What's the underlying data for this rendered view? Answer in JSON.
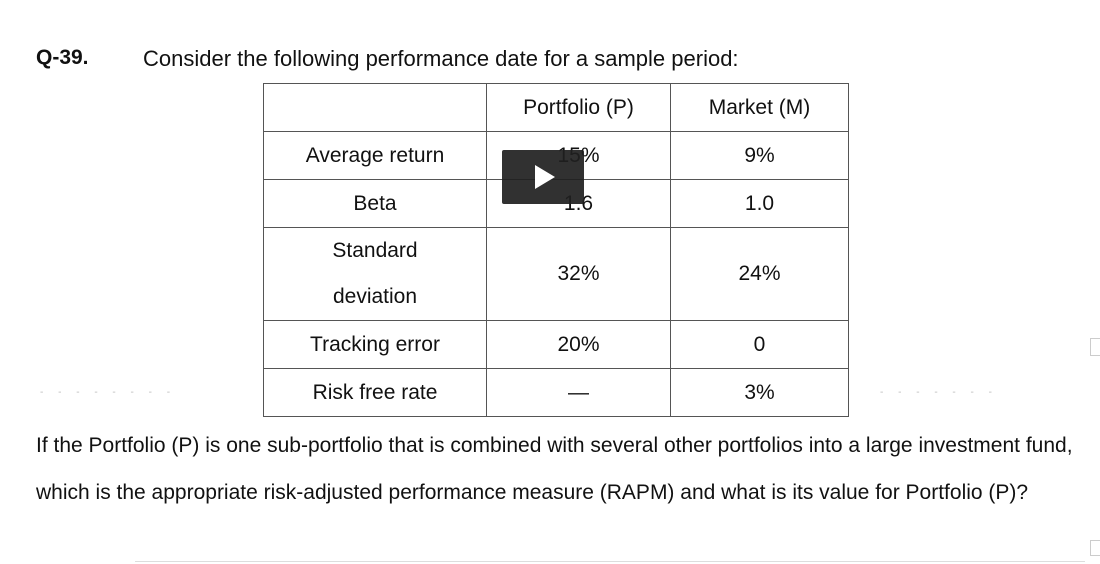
{
  "question": {
    "number": "Q-39.",
    "prompt": "Consider the following performance date for a sample period:"
  },
  "table": {
    "headers": [
      "",
      "Portfolio (P)",
      "Market (M)"
    ],
    "rows": [
      {
        "label": "Average return",
        "portfolio": "15%",
        "market": "9%"
      },
      {
        "label": "Beta",
        "portfolio": "1.6",
        "market": "1.0"
      },
      {
        "label_line1": "Standard",
        "label_line2": "deviation",
        "portfolio": "32%",
        "market": "24%"
      },
      {
        "label": "Tracking error",
        "portfolio": "20%",
        "market": "0"
      },
      {
        "label": "Risk free rate",
        "portfolio": "—",
        "market": "3%"
      }
    ]
  },
  "paragraph": {
    "text": "If the Portfolio (P) is one sub-portfolio that is combined with several other portfolios into a large investment fund, which is the appropriate risk-adjusted performance measure (RAPM) and what is its value for Portfolio (P)?"
  },
  "video": {
    "icon": "play-icon"
  }
}
